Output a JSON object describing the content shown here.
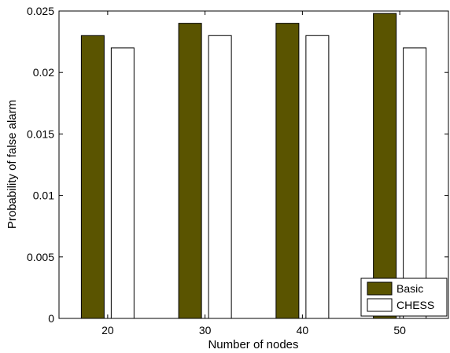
{
  "chart_data": {
    "type": "bar",
    "title": "",
    "xlabel": "Number of nodes",
    "ylabel": "Probability of false alarm",
    "categories": [
      "20",
      "30",
      "40",
      "50"
    ],
    "series": [
      {
        "name": "Basic",
        "values": [
          0.023,
          0.024,
          0.024,
          0.0248
        ],
        "color": "#5a5400"
      },
      {
        "name": "CHESS",
        "values": [
          0.022,
          0.023,
          0.023,
          0.022
        ],
        "color": "#ffffff"
      }
    ],
    "ylim": [
      0,
      0.025
    ],
    "yticks": [
      "0",
      "0.005",
      "0.01",
      "0.015",
      "0.02",
      "0.025"
    ],
    "grid": false,
    "legend_position": "bottom-right"
  }
}
